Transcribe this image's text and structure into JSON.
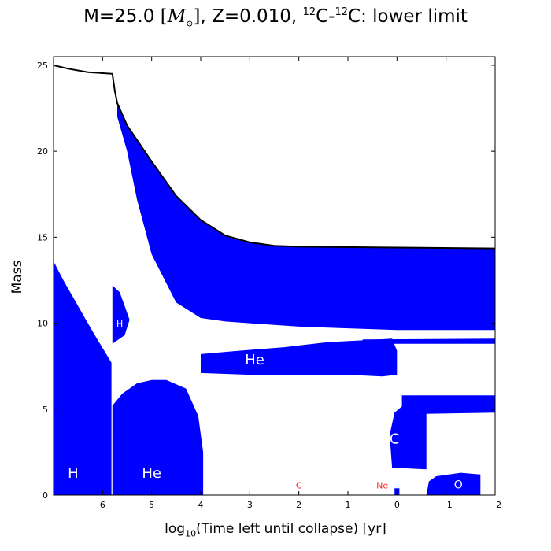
{
  "chart_data": {
    "type": "area",
    "title": {
      "prefix": "M=25.0 [",
      "msun_symbol": "M",
      "msun_sub": "⊙",
      "middle": "], Z=0.010, ",
      "sup1": "12",
      "c1": "C-",
      "sup2": "12",
      "suffix": "C: lower limit"
    },
    "xlabel": {
      "prefix": "log",
      "sub": "10",
      "suffix": "(Time left until collapse) [yr]"
    },
    "ylabel": "Mass",
    "xlim": [
      7,
      -2
    ],
    "ylim": [
      0,
      25.5
    ],
    "x_ticks": [
      6,
      5,
      4,
      3,
      2,
      1,
      0,
      -1,
      -2
    ],
    "x_tick_labels": [
      "6",
      "5",
      "4",
      "3",
      "2",
      "1",
      "0",
      "−1",
      "−2"
    ],
    "y_ticks": [
      0,
      5,
      10,
      15,
      20,
      25
    ],
    "y_tick_labels": [
      "0",
      "5",
      "10",
      "15",
      "20",
      "25"
    ],
    "colors": {
      "convective": "#0000ff",
      "label_white": "#ffffff",
      "label_red": "#ff2020",
      "boundary": "#000000"
    },
    "star_mass_curve": [
      [
        7,
        25.0
      ],
      [
        6.7,
        24.8
      ],
      [
        6.3,
        24.6
      ],
      [
        5.8,
        24.5
      ],
      [
        5.75,
        23.5
      ],
      [
        5.7,
        22.8
      ],
      [
        5.5,
        21.5
      ],
      [
        5.0,
        19.4
      ],
      [
        4.5,
        17.4
      ],
      [
        4.0,
        16.0
      ],
      [
        3.5,
        15.1
      ],
      [
        3.0,
        14.7
      ],
      [
        2.5,
        14.5
      ],
      [
        2.0,
        14.45
      ],
      [
        0,
        14.4
      ],
      [
        -2,
        14.35
      ]
    ],
    "convective_regions": [
      {
        "name": "H core burning",
        "polygon": [
          [
            7,
            0
          ],
          [
            7,
            13.6
          ],
          [
            6.8,
            12.5
          ],
          [
            6.5,
            11.0
          ],
          [
            6.2,
            9.5
          ],
          [
            5.82,
            7.7
          ],
          [
            5.82,
            0
          ]
        ]
      },
      {
        "name": "H shell",
        "polygon": [
          [
            5.8,
            7.7
          ],
          [
            5.8,
            12.2
          ],
          [
            5.65,
            11.8
          ],
          [
            5.55,
            11.0
          ],
          [
            5.45,
            10.2
          ],
          [
            5.55,
            9.3
          ],
          [
            5.8,
            8.8
          ]
        ]
      },
      {
        "name": "He core burning",
        "polygon": [
          [
            5.8,
            0
          ],
          [
            5.8,
            5.2
          ],
          [
            5.6,
            5.9
          ],
          [
            5.3,
            6.5
          ],
          [
            5.0,
            6.7
          ],
          [
            4.7,
            6.7
          ],
          [
            4.3,
            6.2
          ],
          [
            4.05,
            4.6
          ],
          [
            3.95,
            2.5
          ],
          [
            3.95,
            0
          ]
        ]
      },
      {
        "name": "Envelope",
        "polygon": [
          [
            5.7,
            22.8
          ],
          [
            5.5,
            21.5
          ],
          [
            5.0,
            19.4
          ],
          [
            4.5,
            17.4
          ],
          [
            4.0,
            16.0
          ],
          [
            3.5,
            15.1
          ],
          [
            3.0,
            14.7
          ],
          [
            2.5,
            14.5
          ],
          [
            2.0,
            14.45
          ],
          [
            0,
            14.4
          ],
          [
            -2,
            14.35
          ],
          [
            -2,
            9.6
          ],
          [
            0,
            9.6
          ],
          [
            1.0,
            9.7
          ],
          [
            2.0,
            9.8
          ],
          [
            3.0,
            10.0
          ],
          [
            3.5,
            10.1
          ],
          [
            4.0,
            10.3
          ],
          [
            4.5,
            11.2
          ],
          [
            5.0,
            14.0
          ],
          [
            5.3,
            17.2
          ],
          [
            5.5,
            20.0
          ],
          [
            5.7,
            22.0
          ]
        ]
      },
      {
        "name": "He shell",
        "polygon": [
          [
            4.0,
            7.1
          ],
          [
            4.0,
            8.2
          ],
          [
            3.2,
            8.4
          ],
          [
            2.3,
            8.6
          ],
          [
            1.4,
            8.9
          ],
          [
            0.7,
            9.0
          ],
          [
            0.1,
            9.1
          ],
          [
            0,
            8.4
          ],
          [
            0,
            7.0
          ],
          [
            0.3,
            6.9
          ],
          [
            1.0,
            7.0
          ],
          [
            2.0,
            7.0
          ],
          [
            3.0,
            7.0
          ]
        ]
      },
      {
        "name": "He shell upper strip",
        "polygon": [
          [
            0.7,
            9.05
          ],
          [
            -2,
            9.1
          ],
          [
            -2,
            8.8
          ],
          [
            0.7,
            8.8
          ]
        ]
      },
      {
        "name": "C burning",
        "polygon": [
          [
            0.1,
            1.6
          ],
          [
            0.15,
            3.5
          ],
          [
            0.05,
            4.8
          ],
          [
            -0.2,
            5.4
          ],
          [
            -0.6,
            5.5
          ],
          [
            -0.6,
            1.5
          ]
        ]
      },
      {
        "name": "C shell",
        "polygon": [
          [
            -0.1,
            4.7
          ],
          [
            -0.1,
            5.8
          ],
          [
            -2,
            5.8
          ],
          [
            -2,
            4.8
          ]
        ]
      },
      {
        "name": "O burning",
        "polygon": [
          [
            -0.6,
            0
          ],
          [
            -0.65,
            0.8
          ],
          [
            -0.8,
            1.1
          ],
          [
            -1.3,
            1.3
          ],
          [
            -1.7,
            1.2
          ],
          [
            -1.7,
            0
          ]
        ]
      },
      {
        "name": "Ne burning",
        "polygon": [
          [
            0.05,
            0
          ],
          [
            0.05,
            0.4
          ],
          [
            -0.05,
            0.4
          ],
          [
            -0.05,
            0
          ]
        ]
      }
    ],
    "annotations": [
      {
        "text": "H",
        "x": 6.6,
        "y": 1.0,
        "color": "white",
        "size": "large"
      },
      {
        "text": "He",
        "x": 5.0,
        "y": 1.0,
        "color": "white",
        "size": "large"
      },
      {
        "text": "H",
        "x": 5.65,
        "y": 9.8,
        "color": "white",
        "size": "small"
      },
      {
        "text": "He",
        "x": 2.9,
        "y": 7.6,
        "color": "white",
        "size": "large"
      },
      {
        "text": "C",
        "x": 0.05,
        "y": 3.0,
        "color": "white",
        "size": "large"
      },
      {
        "text": "C",
        "x": 2.0,
        "y": 0.4,
        "color": "red",
        "size": "small"
      },
      {
        "text": "Ne",
        "x": 0.3,
        "y": 0.4,
        "color": "red",
        "size": "small"
      },
      {
        "text": "O",
        "x": -1.25,
        "y": 0.4,
        "color": "white",
        "size": "medium"
      }
    ],
    "grid": false,
    "legend": "none"
  }
}
